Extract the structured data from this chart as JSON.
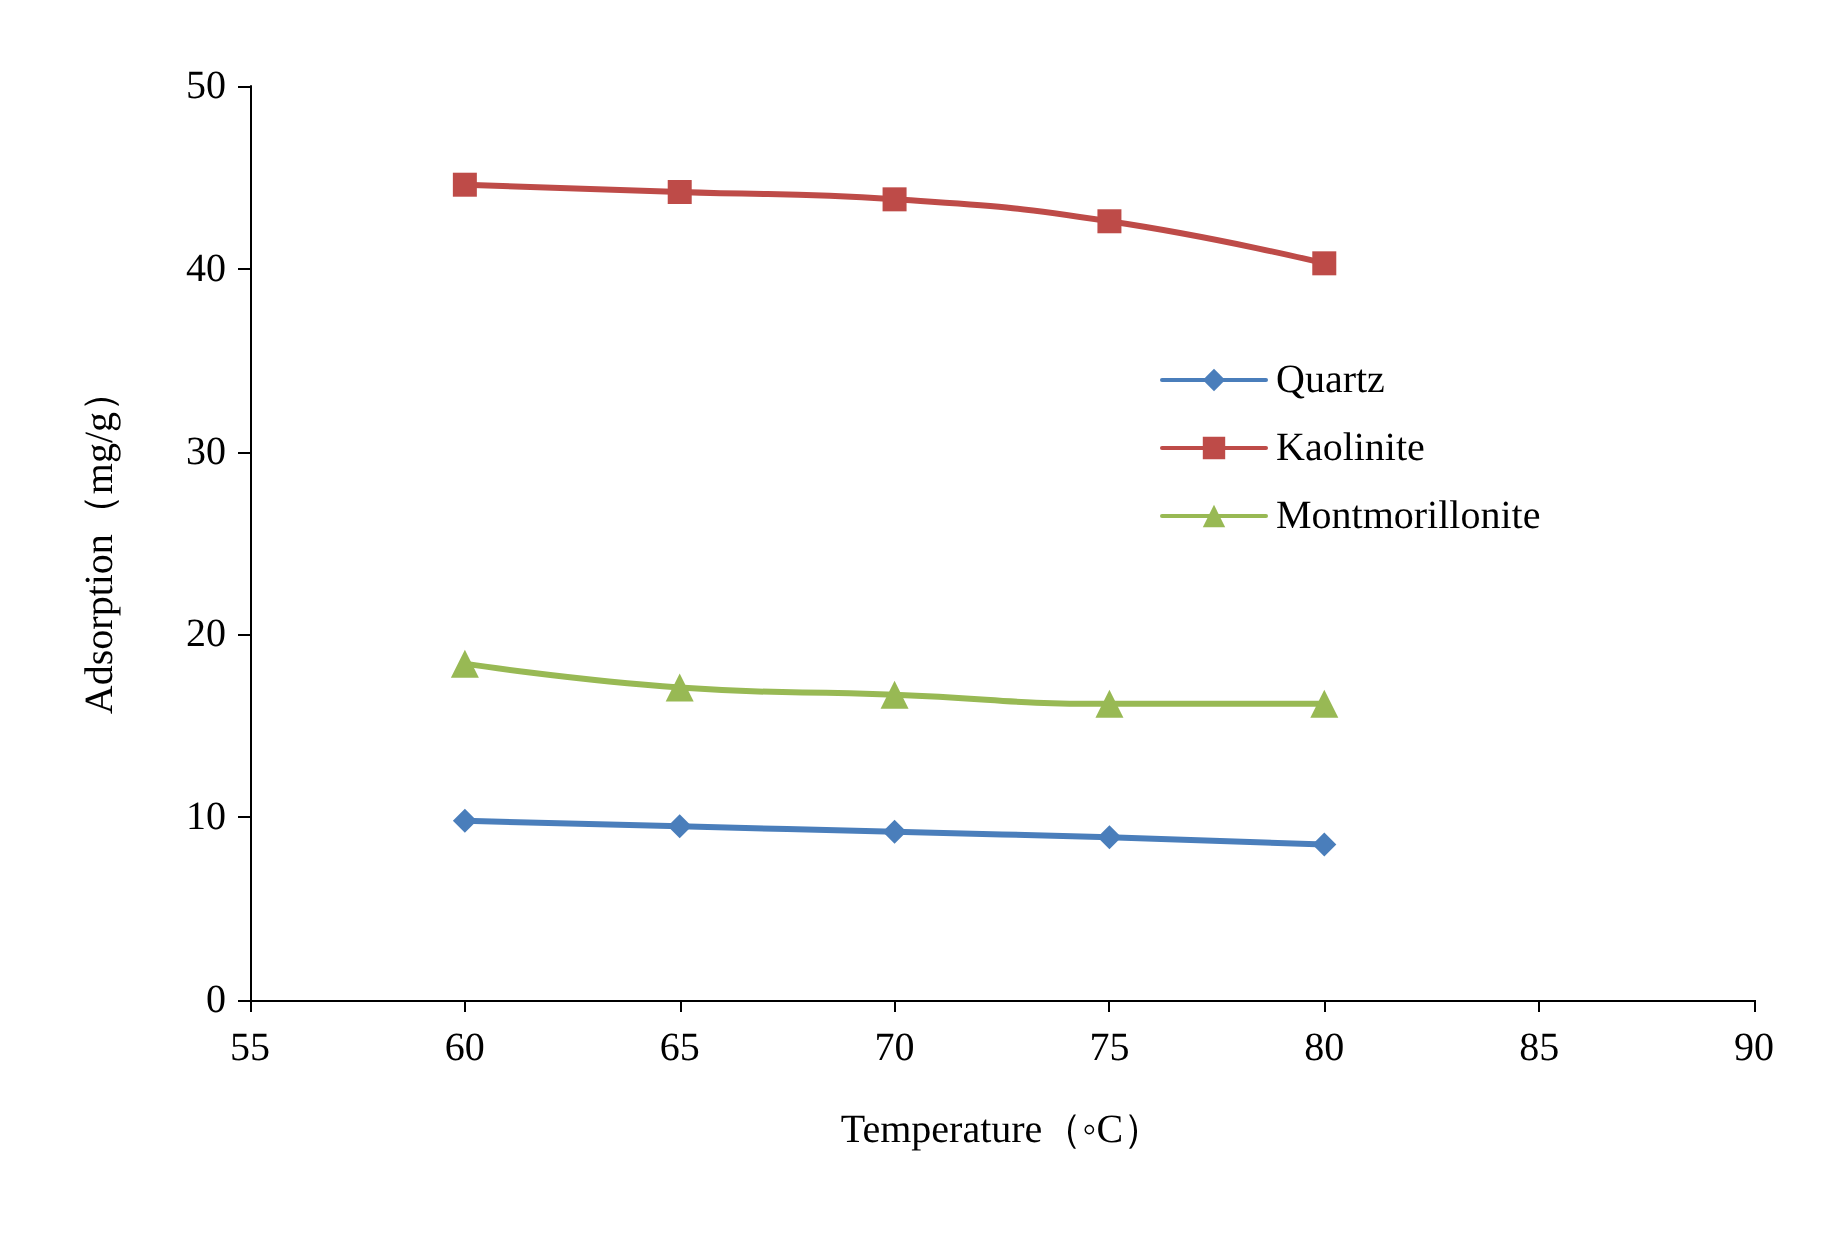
{
  "chart_data": {
    "type": "line",
    "xlabel": "Temperature（◦C）",
    "ylabel": "Adsorption（mg/g）",
    "x": [
      60,
      65,
      70,
      75,
      80
    ],
    "series": [
      {
        "name": "Quartz",
        "color": "#4a7ebb",
        "marker": "diamond",
        "values": [
          9.8,
          9.5,
          9.2,
          8.9,
          8.5
        ]
      },
      {
        "name": "Kaolinite",
        "color": "#be4b48",
        "marker": "square",
        "values": [
          44.6,
          44.2,
          43.8,
          42.6,
          40.3
        ]
      },
      {
        "name": "Montmorillonite",
        "color": "#98b954",
        "marker": "triangle",
        "values": [
          18.4,
          17.1,
          16.7,
          16.2,
          16.2
        ]
      }
    ],
    "xlim": [
      55,
      90
    ],
    "xticks": [
      55,
      60,
      65,
      70,
      75,
      80,
      85,
      90
    ],
    "ylim": [
      0,
      50
    ],
    "yticks": [
      0,
      10,
      20,
      30,
      40,
      50
    ],
    "grid": false,
    "legend": "right",
    "line_style": "solid"
  }
}
